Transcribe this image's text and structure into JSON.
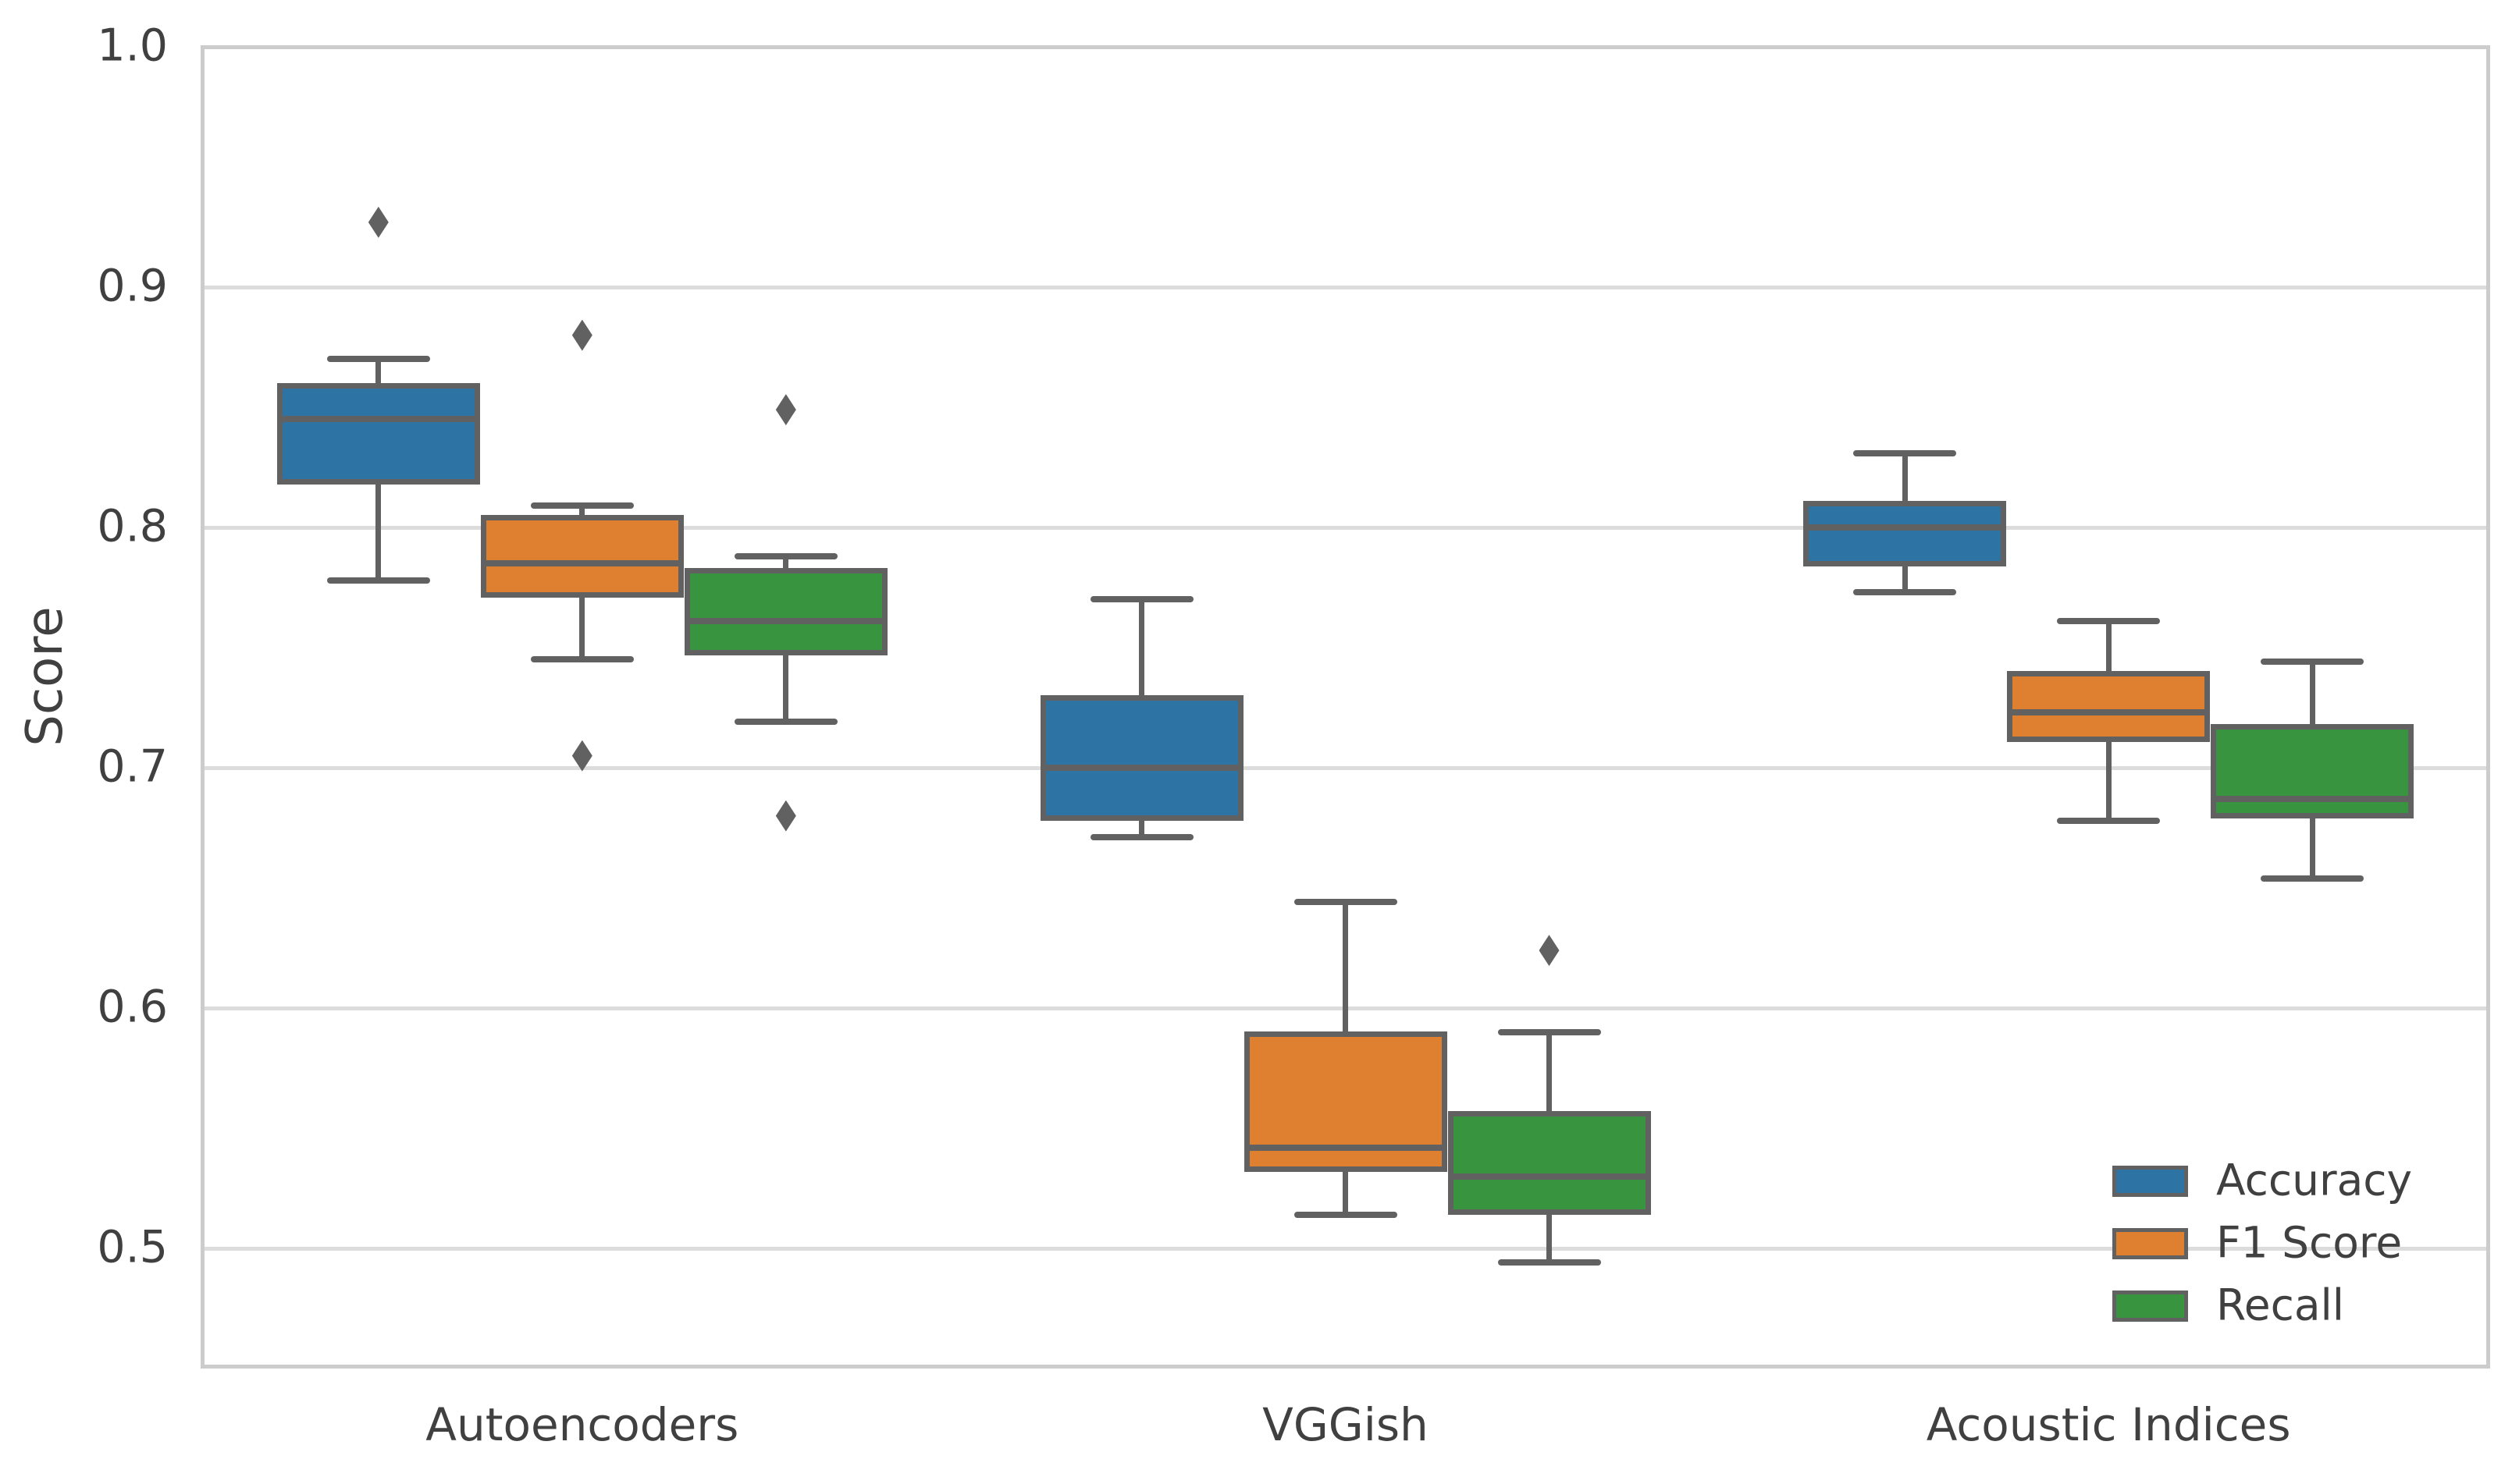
{
  "figure": {
    "ylabel": "Score",
    "colors": {
      "background": "#ffffff",
      "text": "#404040",
      "grid": "#dcdcdc",
      "spine": "#cccccc",
      "line": "#616161"
    }
  },
  "chart_data": {
    "type": "grouped_boxplot",
    "title": "",
    "xlabel": "",
    "ylabel": "Score",
    "grid": "horizontal",
    "legend_position": "lower right",
    "ylim": [
      0.45,
      1.0
    ],
    "categories": [
      "Autoencoders",
      "VGGish",
      "Acoustic Indices"
    ],
    "yticks": [
      {
        "label": "1.0",
        "value": 1.0
      },
      {
        "label": "0.9",
        "value": 0.9
      },
      {
        "label": "0.8",
        "value": 0.8
      },
      {
        "label": "0.7",
        "value": 0.7
      },
      {
        "label": "0.6",
        "value": 0.6
      },
      {
        "label": "0.5",
        "value": 0.5
      }
    ],
    "series": [
      {
        "name": "Accuracy",
        "color": "#2d74a5",
        "boxes": [
          {
            "category": "Autoencoders",
            "whisker_low": 0.778,
            "q1": 0.819,
            "median": 0.845,
            "q3": 0.859,
            "whisker_high": 0.87,
            "outliers": [
              0.927
            ]
          },
          {
            "category": "VGGish",
            "whisker_low": 0.671,
            "q1": 0.679,
            "median": 0.7,
            "q3": 0.729,
            "whisker_high": 0.77,
            "outliers": []
          },
          {
            "category": "Acoustic Indices",
            "whisker_low": 0.773,
            "q1": 0.785,
            "median": 0.8,
            "q3": 0.81,
            "whisker_high": 0.831,
            "outliers": []
          }
        ]
      },
      {
        "name": "F1 Score",
        "color": "#de8030",
        "boxes": [
          {
            "category": "Autoencoders",
            "whisker_low": 0.745,
            "q1": 0.772,
            "median": 0.785,
            "q3": 0.804,
            "whisker_high": 0.809,
            "outliers": [
              0.88,
              0.705
            ]
          },
          {
            "category": "VGGish",
            "whisker_low": 0.514,
            "q1": 0.533,
            "median": 0.542,
            "q3": 0.589,
            "whisker_high": 0.644,
            "outliers": []
          },
          {
            "category": "Acoustic Indices",
            "whisker_low": 0.678,
            "q1": 0.712,
            "median": 0.723,
            "q3": 0.739,
            "whisker_high": 0.761,
            "outliers": []
          }
        ]
      },
      {
        "name": "Recall",
        "color": "#38943e",
        "boxes": [
          {
            "category": "Autoencoders",
            "whisker_low": 0.719,
            "q1": 0.748,
            "median": 0.761,
            "q3": 0.782,
            "whisker_high": 0.788,
            "outliers": [
              0.849,
              0.68
            ]
          },
          {
            "category": "VGGish",
            "whisker_low": 0.494,
            "q1": 0.515,
            "median": 0.53,
            "q3": 0.556,
            "whisker_high": 0.59,
            "outliers": [
              0.624
            ]
          },
          {
            "category": "Acoustic Indices",
            "whisker_low": 0.654,
            "q1": 0.68,
            "median": 0.687,
            "q3": 0.717,
            "whisker_high": 0.744,
            "outliers": []
          }
        ]
      }
    ]
  }
}
